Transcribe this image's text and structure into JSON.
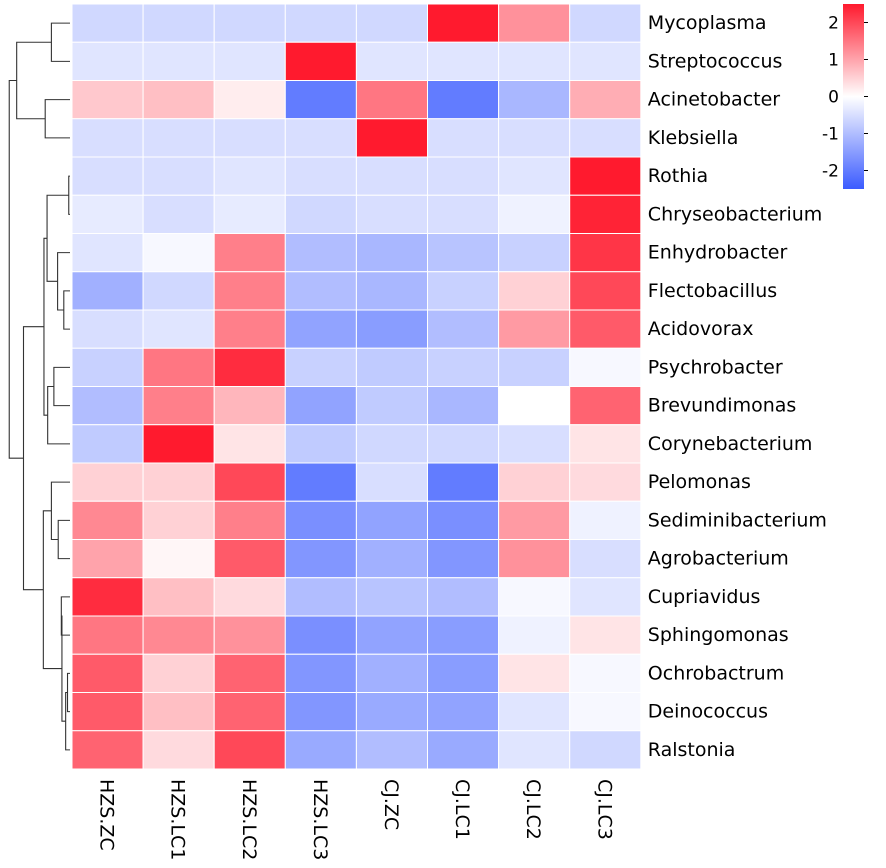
{
  "chart_data": {
    "type": "heatmap",
    "title": "",
    "xlabel": "",
    "ylabel": "",
    "columns": [
      "HZS.ZC",
      "HZS.LC1",
      "HZS.LC2",
      "HZS.LC3",
      "CJ.ZC",
      "CJ.LC1",
      "CJ.LC2",
      "CJ.LC3"
    ],
    "rows": [
      "Mycoplasma",
      "Streptococcus",
      "Acinetobacter",
      "Klebsiella",
      "Rothia",
      "Chryseobacterium",
      "Enhydrobacter",
      "Flectobacillus",
      "Acidovorax",
      "Psychrobacter",
      "Brevundimonas",
      "Corynebacterium",
      "Pelomonas",
      "Sediminibacterium",
      "Agrobacterium",
      "Cupriavidus",
      "Sphingomonas",
      "Ochrobactrum",
      "Deinococcus",
      "Ralstonia"
    ],
    "values": [
      [
        -0.6,
        -0.6,
        -0.6,
        -0.6,
        -0.6,
        2.5,
        1.2,
        -0.6
      ],
      [
        -0.4,
        -0.4,
        -0.4,
        2.5,
        -0.4,
        -0.4,
        -0.4,
        -0.4
      ],
      [
        0.6,
        0.7,
        0.2,
        -2.0,
        1.5,
        -2.0,
        -1.1,
        0.9
      ],
      [
        -0.5,
        -0.5,
        -0.5,
        -0.5,
        2.5,
        -0.5,
        -0.5,
        -0.5
      ],
      [
        -0.5,
        -0.5,
        -0.4,
        -0.5,
        -0.5,
        -0.5,
        -0.4,
        2.5
      ],
      [
        -0.3,
        -0.5,
        -0.3,
        -0.6,
        -0.5,
        -0.5,
        -0.2,
        2.4
      ],
      [
        -0.4,
        -0.1,
        1.4,
        -1.0,
        -1.1,
        -0.9,
        -0.7,
        2.2
      ],
      [
        -1.2,
        -0.6,
        1.4,
        -1.0,
        -1.1,
        -0.7,
        0.5,
        2.0
      ],
      [
        -0.5,
        -0.4,
        1.4,
        -1.4,
        -1.5,
        -1.0,
        1.1,
        1.8
      ],
      [
        -0.7,
        1.5,
        2.3,
        -0.7,
        -0.8,
        -0.7,
        -0.7,
        -0.1
      ],
      [
        -1.0,
        1.4,
        0.8,
        -1.4,
        -0.8,
        -1.1,
        0.0,
        1.7
      ],
      [
        -0.8,
        2.6,
        0.3,
        -0.8,
        -0.6,
        -0.6,
        -0.5,
        0.3
      ],
      [
        0.5,
        0.5,
        2.0,
        -2.0,
        -0.5,
        -2.0,
        0.5,
        0.4
      ],
      [
        1.3,
        0.5,
        1.4,
        -1.7,
        -1.4,
        -1.7,
        1.1,
        -0.2
      ],
      [
        1.0,
        0.1,
        1.8,
        -1.6,
        -1.2,
        -1.6,
        1.2,
        -0.5
      ],
      [
        2.3,
        0.7,
        0.4,
        -1.0,
        -0.9,
        -1.0,
        -0.1,
        -0.4
      ],
      [
        1.5,
        1.3,
        1.2,
        -1.7,
        -1.4,
        -1.5,
        -0.2,
        0.3
      ],
      [
        1.8,
        0.5,
        1.7,
        -1.6,
        -1.2,
        -1.5,
        0.3,
        -0.1
      ],
      [
        1.8,
        0.7,
        1.7,
        -1.6,
        -1.3,
        -1.4,
        -0.4,
        -0.1
      ],
      [
        1.7,
        0.4,
        2.0,
        -1.3,
        -1.0,
        -1.3,
        -0.4,
        -0.6
      ]
    ],
    "colorbar": {
      "ticks": [
        2,
        1,
        0,
        -1,
        -2
      ],
      "range": [
        -2.5,
        2.5
      ],
      "colors": {
        "low": "#3b5bff",
        "mid": "#ffffff",
        "high": "#ff1a2e"
      }
    },
    "row_dendrogram": true,
    "legend": "top-right colorbar"
  }
}
